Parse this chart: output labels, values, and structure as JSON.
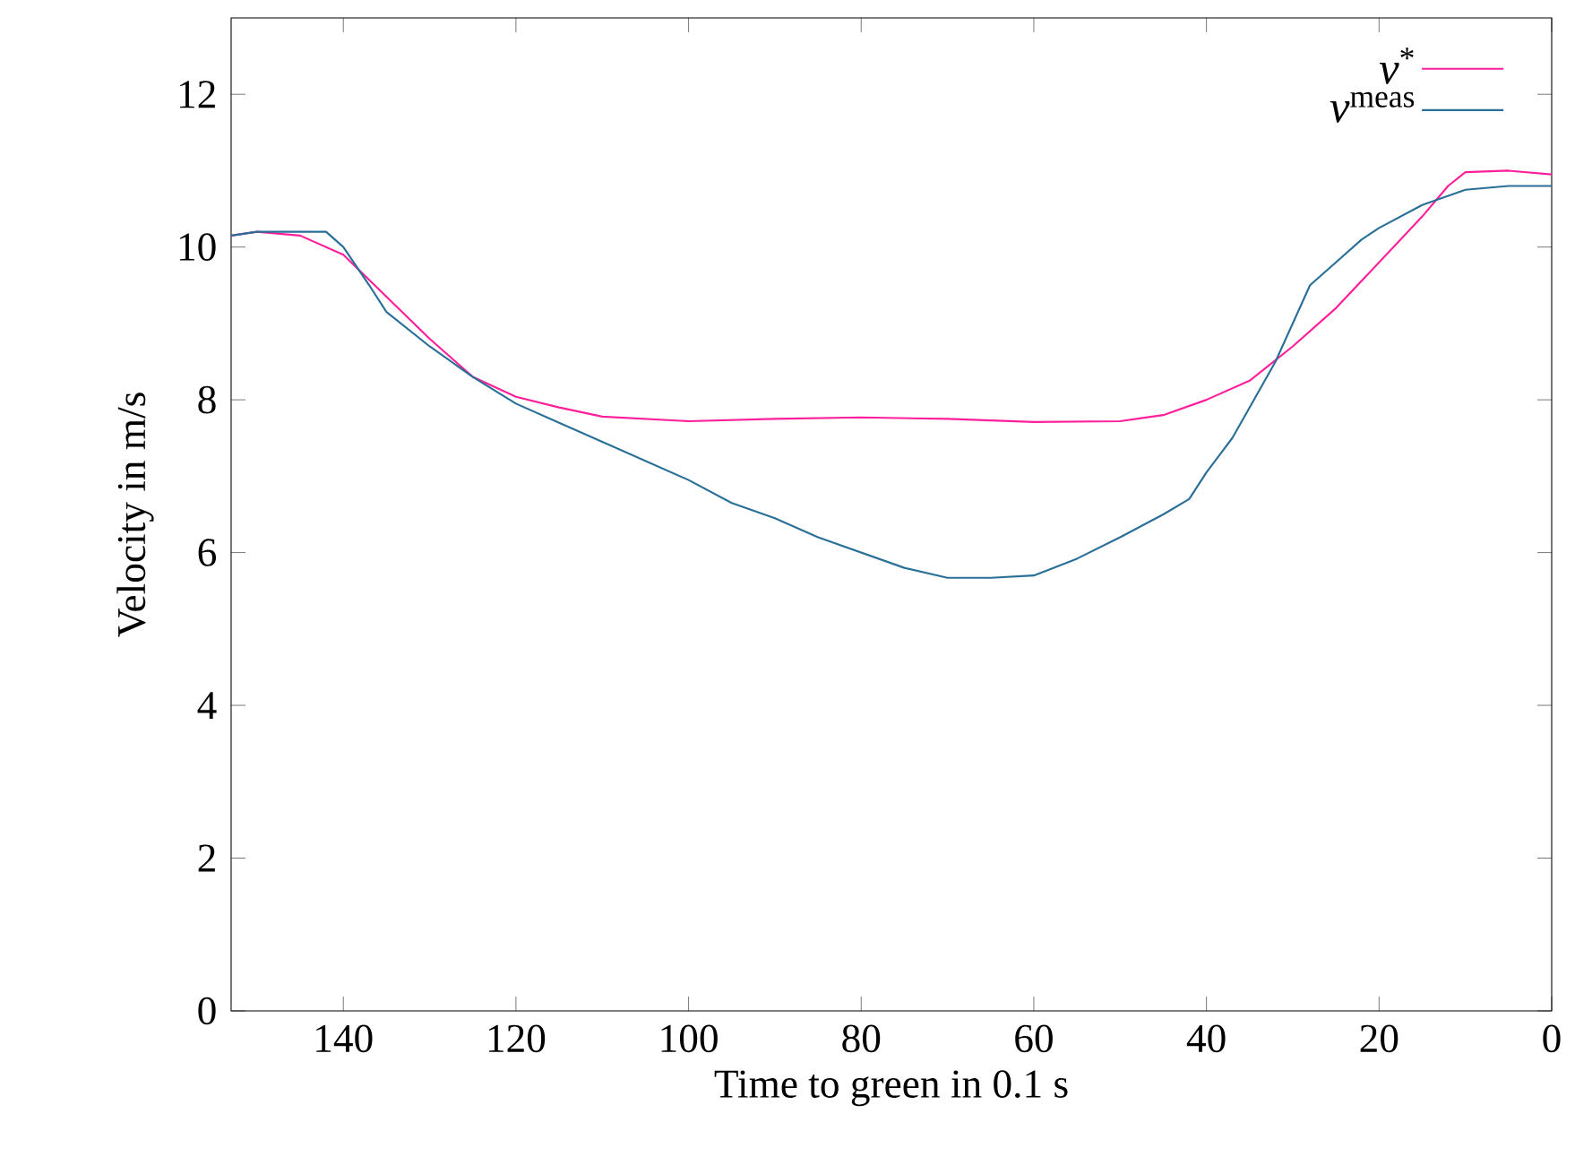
{
  "chart_data": {
    "type": "line",
    "xlabel": "Time to green in 0.1 s",
    "ylabel": "Velocity in m/s",
    "xlim": [
      153,
      0
    ],
    "ylim": [
      0,
      13
    ],
    "xticks": [
      0,
      20,
      40,
      60,
      80,
      100,
      120,
      140
    ],
    "yticks": [
      0,
      2,
      4,
      6,
      8,
      10,
      12
    ],
    "legend": "top right",
    "series": [
      {
        "name": "*v*$^{*}$",
        "color": "#ff1f9a",
        "x": [
          153,
          150,
          145,
          140,
          135,
          130,
          125,
          120,
          115,
          110,
          100,
          90,
          80,
          70,
          60,
          50,
          45,
          40,
          35,
          30,
          25,
          20,
          15,
          12,
          10,
          5,
          0
        ],
        "values": [
          10.15,
          10.2,
          10.15,
          9.9,
          9.35,
          8.8,
          8.3,
          8.04,
          7.9,
          7.78,
          7.72,
          7.75,
          7.77,
          7.75,
          7.71,
          7.72,
          7.8,
          8.0,
          8.25,
          8.7,
          9.2,
          9.8,
          10.4,
          10.8,
          10.98,
          11.0,
          10.95
        ]
      },
      {
        "name": "*v*$^{meas}$",
        "color": "#2a6f97",
        "x": [
          153,
          150,
          142,
          140,
          137,
          135,
          130,
          125,
          120,
          115,
          110,
          105,
          100,
          95,
          90,
          85,
          80,
          75,
          70,
          65,
          60,
          55,
          50,
          45,
          42,
          40,
          37,
          35,
          32,
          30,
          28,
          25,
          22,
          20,
          15,
          10,
          5,
          0
        ],
        "values": [
          10.15,
          10.2,
          10.2,
          10.0,
          9.5,
          9.15,
          8.7,
          8.3,
          7.95,
          7.7,
          7.45,
          7.2,
          6.95,
          6.65,
          6.45,
          6.2,
          6.0,
          5.8,
          5.67,
          5.67,
          5.7,
          5.92,
          6.2,
          6.5,
          6.7,
          7.05,
          7.5,
          7.9,
          8.5,
          9.0,
          9.5,
          9.8,
          10.1,
          10.25,
          10.55,
          10.75,
          10.8,
          10.8
        ]
      }
    ]
  }
}
